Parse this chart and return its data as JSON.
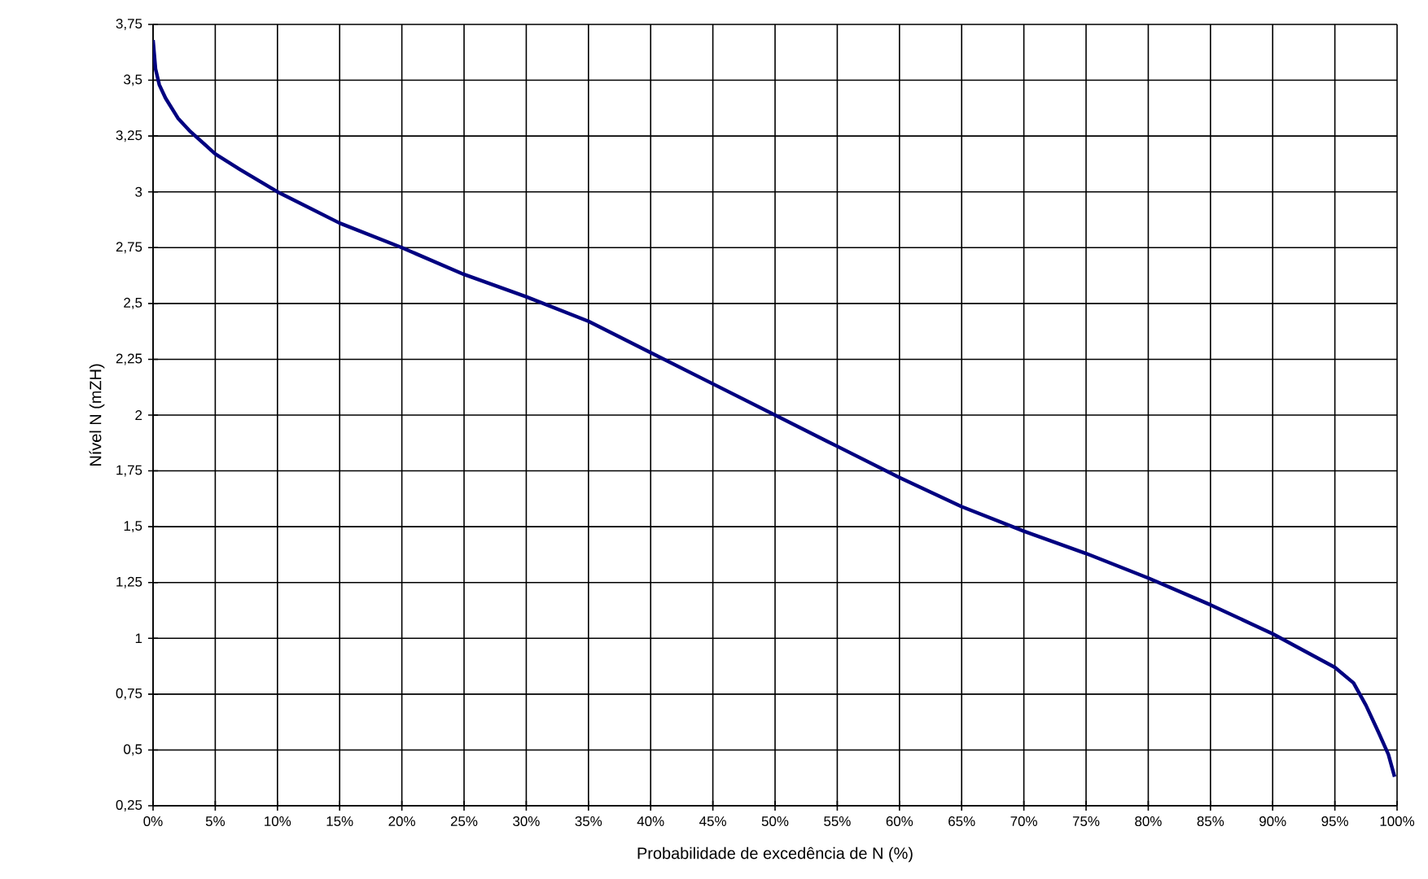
{
  "chart_data": {
    "type": "line",
    "xlabel": "Probabilidade de excedência de N (%)",
    "ylabel": "Nível N (mZH)",
    "x": [
      0,
      0.2,
      0.5,
      1,
      2,
      3,
      5,
      7,
      10,
      15,
      20,
      25,
      30,
      35,
      40,
      45,
      50,
      55,
      60,
      65,
      70,
      75,
      80,
      85,
      90,
      93,
      95,
      96.5,
      97.5,
      98.5,
      99.3,
      99.8
    ],
    "series": [
      {
        "color": "#000080",
        "values": [
          3.68,
          3.55,
          3.48,
          3.42,
          3.33,
          3.27,
          3.17,
          3.1,
          3.0,
          2.86,
          2.75,
          2.63,
          2.53,
          2.42,
          2.28,
          2.14,
          2.0,
          1.86,
          1.72,
          1.59,
          1.48,
          1.38,
          1.27,
          1.15,
          1.02,
          0.93,
          0.87,
          0.8,
          0.7,
          0.58,
          0.48,
          0.38
        ]
      }
    ],
    "xlim": [
      0,
      100
    ],
    "ylim": [
      0.25,
      3.75
    ],
    "xticks": [
      {
        "value": 0,
        "label": "0%"
      },
      {
        "value": 5,
        "label": "5%"
      },
      {
        "value": 10,
        "label": "10%"
      },
      {
        "value": 15,
        "label": "15%"
      },
      {
        "value": 20,
        "label": "20%"
      },
      {
        "value": 25,
        "label": "25%"
      },
      {
        "value": 30,
        "label": "30%"
      },
      {
        "value": 35,
        "label": "35%"
      },
      {
        "value": 40,
        "label": "40%"
      },
      {
        "value": 45,
        "label": "45%"
      },
      {
        "value": 50,
        "label": "50%"
      },
      {
        "value": 55,
        "label": "55%"
      },
      {
        "value": 60,
        "label": "60%"
      },
      {
        "value": 65,
        "label": "65%"
      },
      {
        "value": 70,
        "label": "70%"
      },
      {
        "value": 75,
        "label": "75%"
      },
      {
        "value": 80,
        "label": "80%"
      },
      {
        "value": 85,
        "label": "85%"
      },
      {
        "value": 90,
        "label": "90%"
      },
      {
        "value": 95,
        "label": "95%"
      },
      {
        "value": 100,
        "label": "100%"
      }
    ],
    "yticks": [
      {
        "value": 0.25,
        "label": "0,25"
      },
      {
        "value": 0.5,
        "label": "0,5"
      },
      {
        "value": 0.75,
        "label": "0,75"
      },
      {
        "value": 1,
        "label": "1"
      },
      {
        "value": 1.25,
        "label": "1,25"
      },
      {
        "value": 1.5,
        "label": "1,5"
      },
      {
        "value": 1.75,
        "label": "1,75"
      },
      {
        "value": 2,
        "label": "2"
      },
      {
        "value": 2.25,
        "label": "2,25"
      },
      {
        "value": 2.5,
        "label": "2,5"
      },
      {
        "value": 2.75,
        "label": "2,75"
      },
      {
        "value": 3,
        "label": "3"
      },
      {
        "value": 3.25,
        "label": "3,25"
      },
      {
        "value": 3.5,
        "label": "3,5"
      },
      {
        "value": 3.75,
        "label": "3,75"
      }
    ],
    "grid": true,
    "marker": "none",
    "line_style": "solid"
  }
}
